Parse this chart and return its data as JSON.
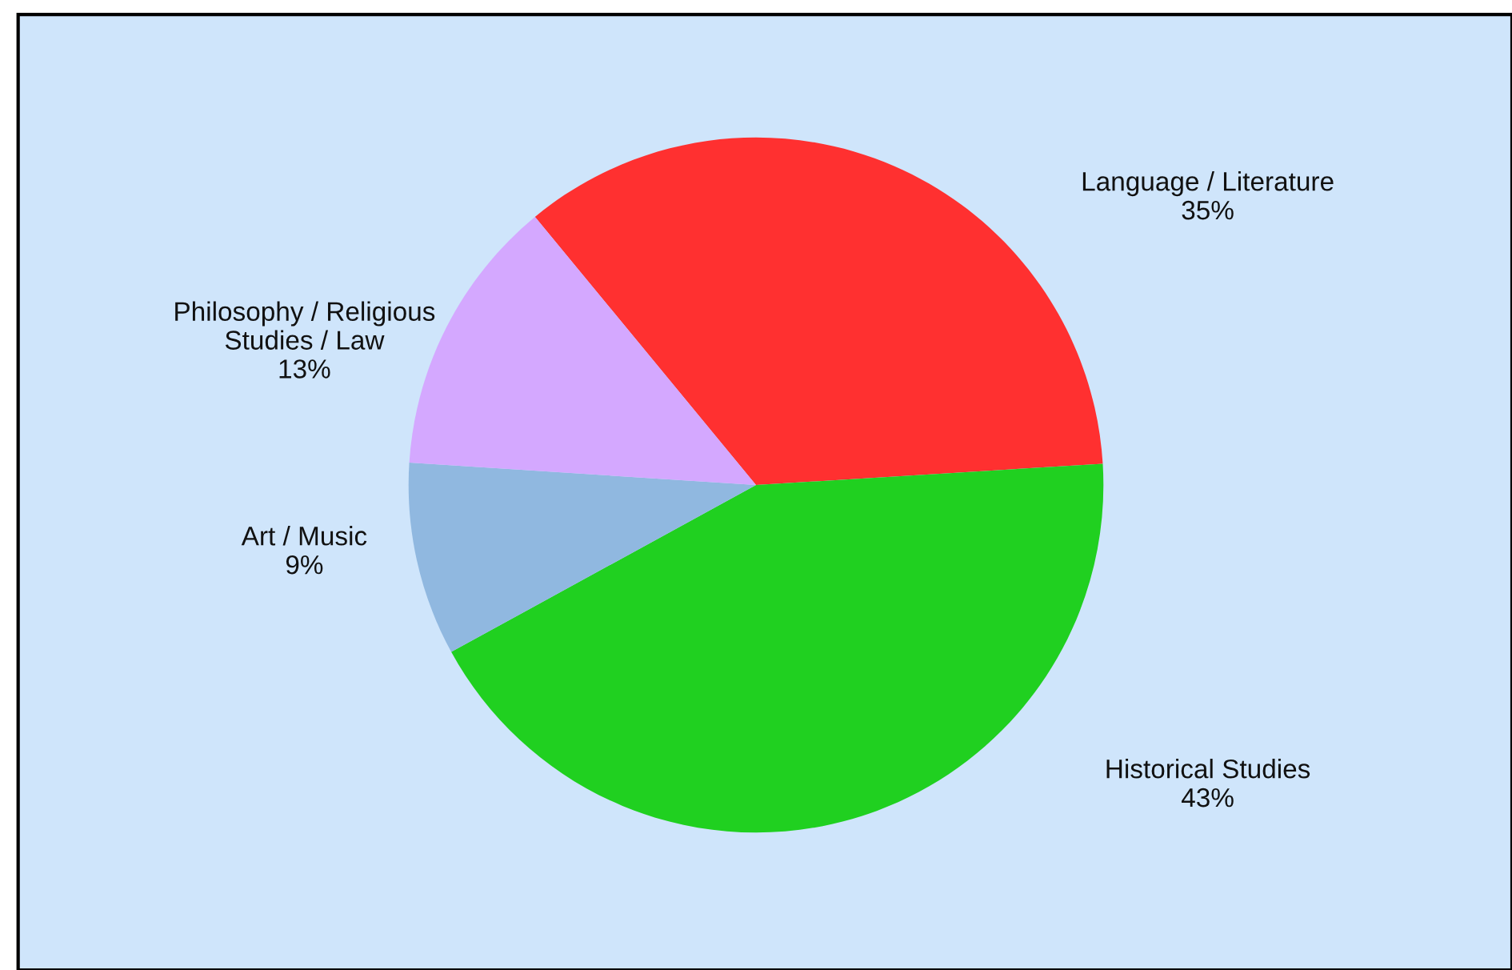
{
  "chart_data": {
    "type": "pie",
    "categories": [
      "Language / Literature",
      "Historical Studies",
      "Art / Music",
      "Philosophy / Religious\nStudies / Law"
    ],
    "values": [
      35,
      43,
      9,
      13
    ],
    "value_labels": [
      "35%",
      "43%",
      "9%",
      "13%"
    ],
    "colors": [
      "#ff3030",
      "#20d020",
      "#90b8e0",
      "#d4a8ff"
    ]
  }
}
